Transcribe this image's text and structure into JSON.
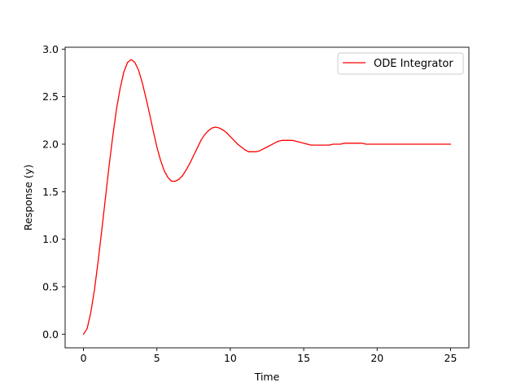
{
  "chart_data": {
    "type": "line",
    "title": "",
    "xlabel": "Time",
    "ylabel": "Response (y)",
    "xlim": [
      -1.25,
      26.25
    ],
    "ylim": [
      -0.143,
      3.02
    ],
    "xticks": [
      0,
      5,
      10,
      15,
      20,
      25
    ],
    "xtick_labels": [
      "0",
      "5",
      "10",
      "15",
      "20",
      "25"
    ],
    "yticks": [
      0.0,
      0.5,
      1.0,
      1.5,
      2.0,
      2.5,
      3.0
    ],
    "ytick_labels": [
      "0.0",
      "0.5",
      "1.0",
      "1.5",
      "2.0",
      "2.5",
      "3.0"
    ],
    "grid": false,
    "legend_position": "upper right",
    "series": [
      {
        "name": "ODE Integrator",
        "color": "#ff0000",
        "x": [
          0,
          0.25,
          0.5,
          0.75,
          1,
          1.25,
          1.5,
          1.75,
          2,
          2.25,
          2.5,
          2.75,
          3,
          3.25,
          3.5,
          3.75,
          4,
          4.25,
          4.5,
          4.75,
          5,
          5.25,
          5.5,
          5.75,
          6,
          6.25,
          6.5,
          6.75,
          7,
          7.25,
          7.5,
          7.75,
          8,
          8.25,
          8.5,
          8.75,
          9,
          9.25,
          9.5,
          9.75,
          10,
          10.25,
          10.5,
          10.75,
          11,
          11.25,
          11.5,
          11.75,
          12,
          12.25,
          12.5,
          12.75,
          13,
          13.25,
          13.5,
          13.75,
          14,
          14.25,
          14.5,
          14.75,
          15,
          15.25,
          15.5,
          15.75,
          16,
          16.25,
          16.5,
          16.75,
          17,
          17.25,
          17.5,
          17.75,
          18,
          18.25,
          18.5,
          18.75,
          19,
          19.25,
          19.5,
          19.75,
          20,
          20.25,
          20.5,
          20.75,
          21,
          21.25,
          21.5,
          21.75,
          22,
          22.25,
          22.5,
          22.75,
          23,
          23.25,
          23.5,
          23.75,
          24,
          24.25,
          24.5,
          24.75,
          25
        ],
        "y": [
          0.0,
          0.06,
          0.23,
          0.47,
          0.77,
          1.1,
          1.44,
          1.78,
          2.09,
          2.37,
          2.59,
          2.76,
          2.86,
          2.89,
          2.86,
          2.78,
          2.65,
          2.49,
          2.32,
          2.14,
          1.97,
          1.83,
          1.72,
          1.65,
          1.61,
          1.61,
          1.63,
          1.67,
          1.73,
          1.8,
          1.88,
          1.96,
          2.04,
          2.1,
          2.14,
          2.17,
          2.18,
          2.17,
          2.15,
          2.12,
          2.08,
          2.04,
          2.0,
          1.97,
          1.94,
          1.92,
          1.92,
          1.92,
          1.93,
          1.95,
          1.97,
          1.99,
          2.01,
          2.03,
          2.04,
          2.04,
          2.04,
          2.04,
          2.03,
          2.02,
          2.01,
          2.0,
          1.99,
          1.99,
          1.99,
          1.99,
          1.99,
          1.99,
          2.0,
          2.0,
          2.0,
          2.01,
          2.01,
          2.01,
          2.01,
          2.01,
          2.01,
          2.0,
          2.0,
          2.0,
          2.0,
          2.0,
          2.0,
          2.0,
          2.0,
          2.0,
          2.0,
          2.0,
          2.0,
          2.0,
          2.0,
          2.0,
          2.0,
          2.0,
          2.0,
          2.0,
          2.0,
          2.0,
          2.0,
          2.0,
          2.0
        ]
      }
    ]
  }
}
